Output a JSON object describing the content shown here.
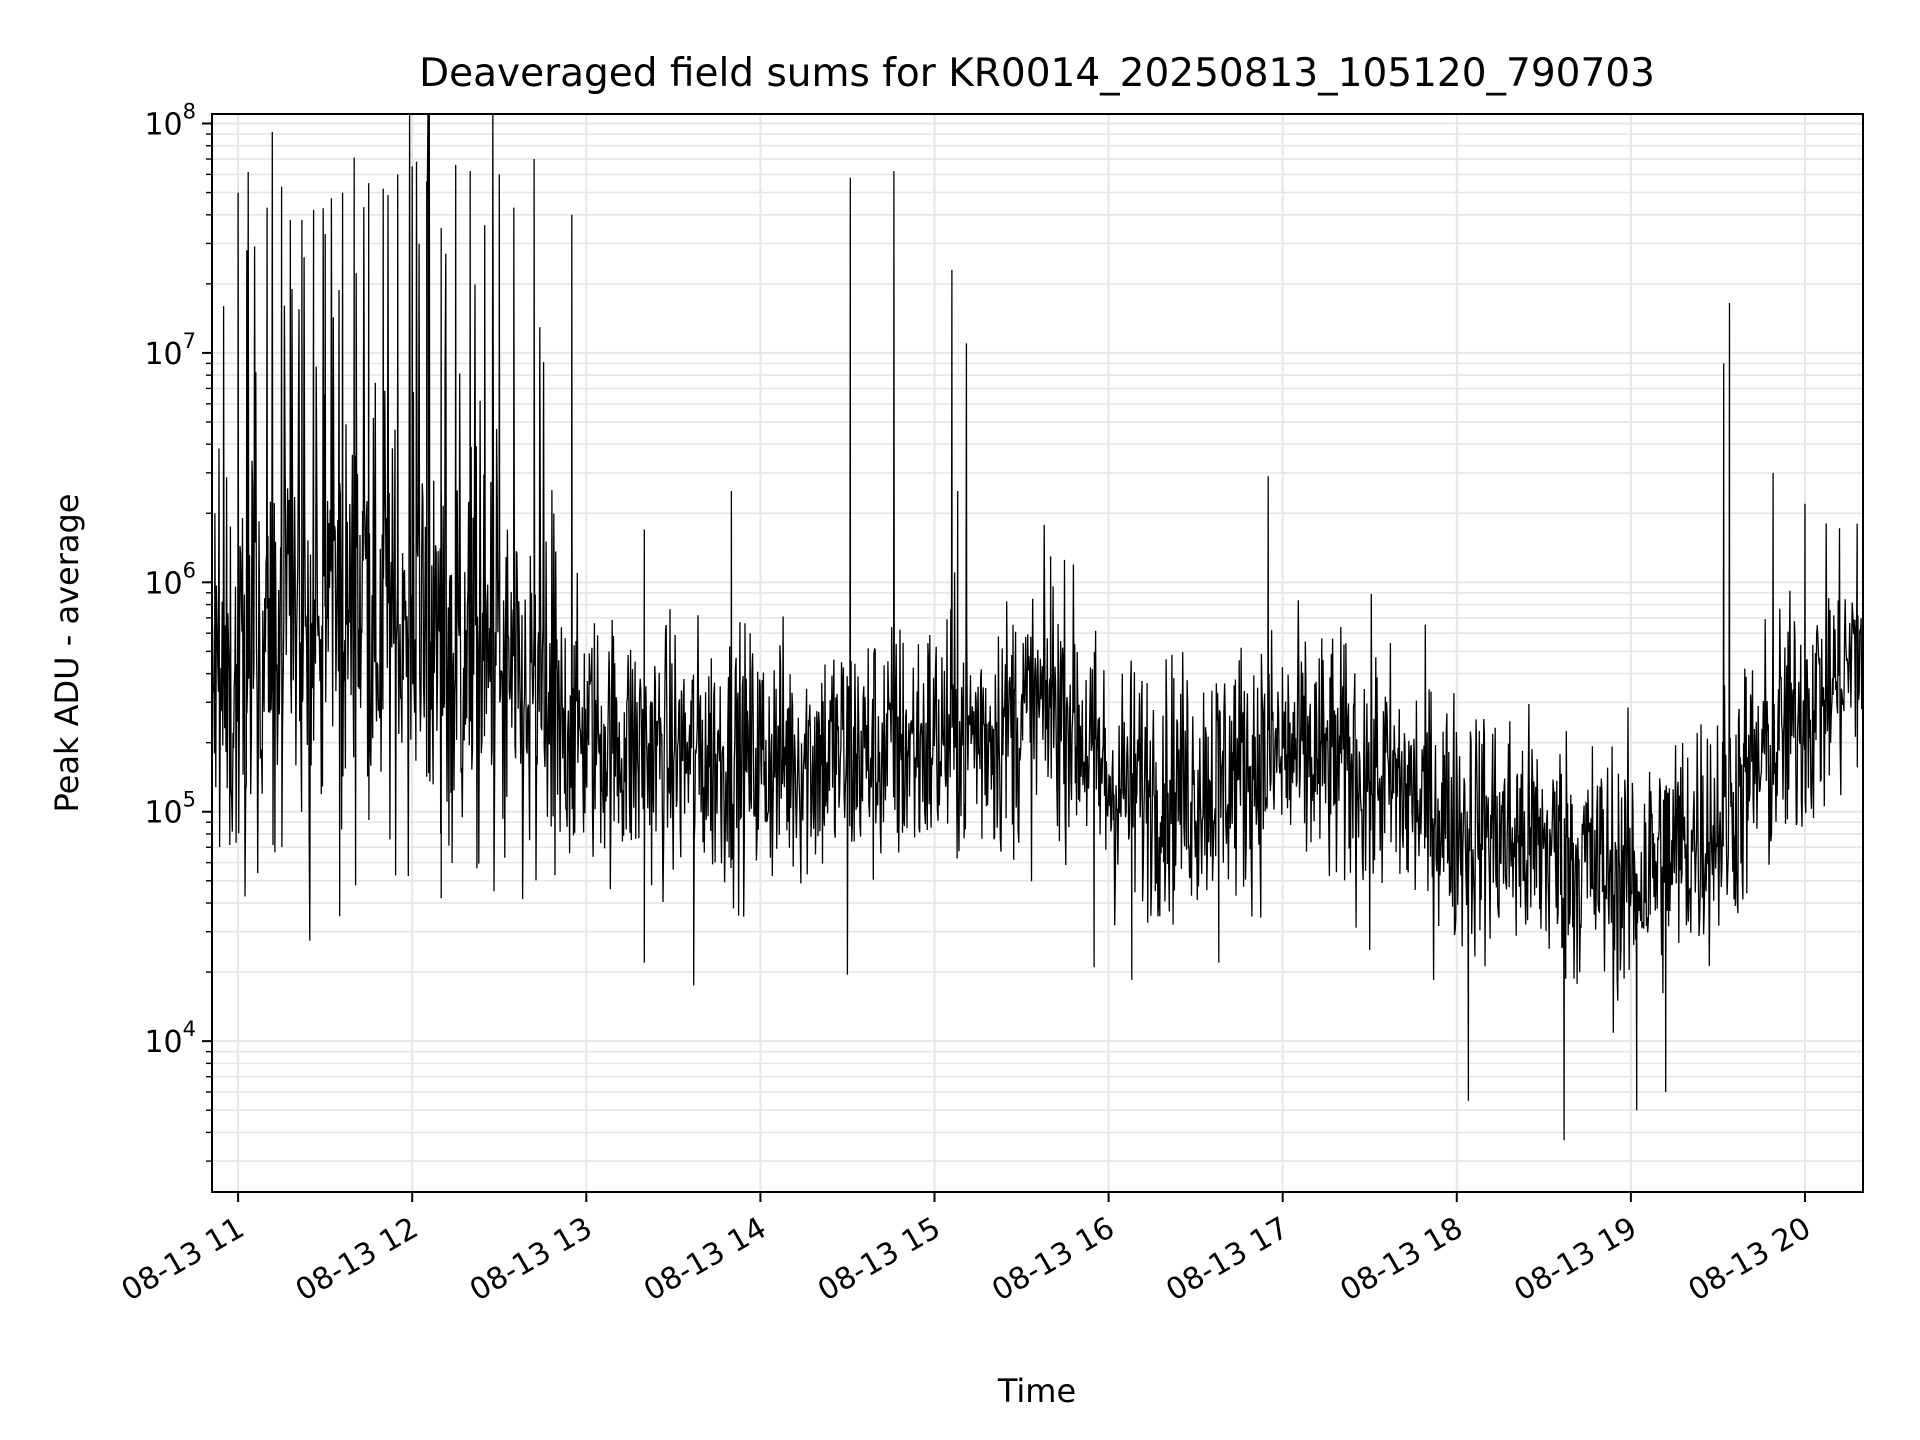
{
  "chart_data": {
    "type": "line",
    "title": "Deaveraged field sums for KR0014_20250813_105120_790703",
    "xlabel": "Time",
    "ylabel": "Peak ADU - average",
    "xlim": [
      "2025-08-13 10:51",
      "2025-08-13 20:20"
    ],
    "ylim": [
      2200,
      110000000
    ],
    "yscale": "log",
    "grid": true,
    "line_color": "#000000",
    "grid_color": "#e6e6e6",
    "x_ticks": [
      {
        "time": "2025-08-13 11:00",
        "label": "08-13 11"
      },
      {
        "time": "2025-08-13 12:00",
        "label": "08-13 12"
      },
      {
        "time": "2025-08-13 13:00",
        "label": "08-13 13"
      },
      {
        "time": "2025-08-13 14:00",
        "label": "08-13 14"
      },
      {
        "time": "2025-08-13 15:00",
        "label": "08-13 15"
      },
      {
        "time": "2025-08-13 16:00",
        "label": "08-13 16"
      },
      {
        "time": "2025-08-13 17:00",
        "label": "08-13 17"
      },
      {
        "time": "2025-08-13 18:00",
        "label": "08-13 18"
      },
      {
        "time": "2025-08-13 19:00",
        "label": "08-13 19"
      },
      {
        "time": "2025-08-13 20:00",
        "label": "08-13 20"
      }
    ],
    "y_ticks": [
      {
        "value": 10000,
        "base": "10",
        "exp": "4"
      },
      {
        "value": 100000,
        "base": "10",
        "exp": "5"
      },
      {
        "value": 1000000,
        "base": "10",
        "exp": "6"
      },
      {
        "value": 10000000,
        "base": "10",
        "exp": "7"
      },
      {
        "value": 100000000,
        "base": "10",
        "exp": "8"
      }
    ],
    "series": [
      {
        "baseline": {
          "time": [
            "2025-08-13 10:51",
            "2025-08-13 11:10",
            "2025-08-13 11:40",
            "2025-08-13 12:10",
            "2025-08-13 12:45",
            "2025-08-13 13:20",
            "2025-08-13 14:00",
            "2025-08-13 14:40",
            "2025-08-13 15:20",
            "2025-08-13 15:45",
            "2025-08-13 16:00",
            "2025-08-13 16:30",
            "2025-08-13 17:00",
            "2025-08-13 17:30",
            "2025-08-13 18:00",
            "2025-08-13 18:30",
            "2025-08-13 19:00",
            "2025-08-13 19:30",
            "2025-08-13 19:50",
            "2025-08-13 20:20"
          ],
          "value": [
            300000,
            400000,
            800000,
            500000,
            250000,
            180000,
            170000,
            180000,
            230000,
            300000,
            130000,
            130000,
            180000,
            150000,
            90000,
            70000,
            50000,
            90000,
            200000,
            500000
          ]
        },
        "spikes": {
          "time": [
            "2025-08-13 10:52",
            "2025-08-13 10:55",
            "2025-08-13 11:00",
            "2025-08-13 11:03",
            "2025-08-13 11:10",
            "2025-08-13 11:15",
            "2025-08-13 11:18",
            "2025-08-13 11:22",
            "2025-08-13 11:26",
            "2025-08-13 11:30",
            "2025-08-13 11:36",
            "2025-08-13 11:40",
            "2025-08-13 11:45",
            "2025-08-13 11:50",
            "2025-08-13 11:55",
            "2025-08-13 12:00",
            "2025-08-13 12:05",
            "2025-08-13 12:10",
            "2025-08-13 12:15",
            "2025-08-13 12:20",
            "2025-08-13 12:25",
            "2025-08-13 12:30",
            "2025-08-13 12:35",
            "2025-08-13 12:42",
            "2025-08-13 12:55",
            "2025-08-13 13:20",
            "2025-08-13 13:50",
            "2025-08-13 14:31",
            "2025-08-13 14:46",
            "2025-08-13 15:06",
            "2025-08-13 15:08",
            "2025-08-13 15:11",
            "2025-08-13 15:40",
            "2025-08-13 16:55",
            "2025-08-13 19:32",
            "2025-08-13 19:34",
            "2025-08-13 19:49",
            "2025-08-13 20:00",
            "2025-08-13 20:18"
          ],
          "value": [
            2000000,
            16000000,
            50000000,
            28000000,
            43000000,
            53000000,
            38000000,
            38000000,
            42000000,
            33000000,
            50000000,
            71000000,
            55000000,
            52000000,
            60000000,
            65000000,
            56000000,
            35000000,
            66000000,
            62000000,
            36000000,
            60000000,
            43000000,
            70000000,
            40000000,
            1700000,
            2500000,
            58000000,
            62000000,
            23000000,
            2500000,
            11000000,
            1300000,
            2900000,
            9000000,
            16500000,
            3000000,
            2200000,
            1800000
          ]
        },
        "dips": {
          "time": [
            "2025-08-13 11:35",
            "2025-08-13 12:10",
            "2025-08-13 13:20",
            "2025-08-13 13:37",
            "2025-08-13 14:30",
            "2025-08-13 15:55",
            "2025-08-13 16:08",
            "2025-08-13 16:38",
            "2025-08-13 17:30",
            "2025-08-13 18:04",
            "2025-08-13 18:37",
            "2025-08-13 19:02",
            "2025-08-13 19:12"
          ],
          "value": [
            35000,
            42000,
            22000,
            17500,
            19500,
            21000,
            18500,
            22000,
            25000,
            5500,
            3700,
            5000,
            6000
          ]
        }
      }
    ]
  }
}
